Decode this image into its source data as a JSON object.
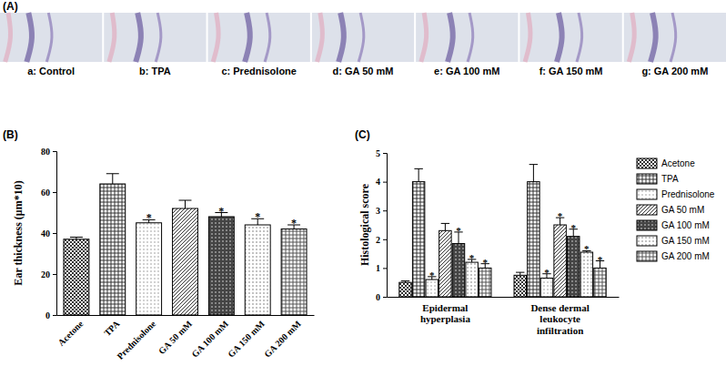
{
  "figure": {
    "panel_labels": [
      "(A)",
      "(B)",
      "(C)"
    ],
    "image_captions": [
      "a: Control",
      "b: TPA",
      "c: Prednisolone",
      "d: GA 50 mM",
      "e: GA 100 mM",
      "f: GA 150 mM",
      "g: GA 200 mM"
    ]
  },
  "chart_data": [
    {
      "type": "bar",
      "y_label": "Ear thickness (μm*10)",
      "categories": [
        "Acetone",
        "TPA",
        "Prednisolone",
        "GA 50 mM",
        "GA 100 mM",
        "GA 150 mM",
        "GA 200 mM"
      ],
      "values": [
        37,
        64,
        45,
        52,
        48,
        44,
        42
      ],
      "errors": [
        1,
        5,
        1.5,
        4,
        2,
        3,
        2
      ],
      "significance": [
        null,
        null,
        "*",
        null,
        "*",
        "*",
        "*"
      ],
      "colors": [
        "#333333",
        "#333333",
        "#999999",
        "#333333",
        "#444444",
        "#777777",
        "#555555"
      ],
      "ylim": [
        0,
        80
      ],
      "yticks": [
        0,
        20,
        40,
        60,
        80
      ]
    },
    {
      "type": "bar",
      "y_label": "Histological score",
      "categories": [
        "Epidermal hyperplasia",
        "Dense dermal leukocyte infiltration"
      ],
      "series": [
        {
          "name": "Acetone",
          "color": "#333333",
          "values": [
            0.5,
            0.75
          ],
          "errors": [
            0.05,
            0.1
          ],
          "significance": [
            null,
            null
          ]
        },
        {
          "name": "TPA",
          "color": "#333333",
          "values": [
            4.0,
            4.0
          ],
          "errors": [
            0.45,
            0.6
          ],
          "significance": [
            null,
            null
          ]
        },
        {
          "name": "Prednisolone",
          "color": "#999999",
          "values": [
            0.6,
            0.65
          ],
          "errors": [
            0.1,
            0.15
          ],
          "significance": [
            "*",
            "*"
          ]
        },
        {
          "name": "GA 50 mM",
          "color": "#333333",
          "values": [
            2.3,
            2.5
          ],
          "errors": [
            0.25,
            0.25
          ],
          "significance": [
            null,
            "*"
          ]
        },
        {
          "name": "GA 100 mM",
          "color": "#444444",
          "values": [
            1.85,
            2.1
          ],
          "errors": [
            0.4,
            0.25
          ],
          "significance": [
            "*",
            "*"
          ]
        },
        {
          "name": "GA 150 mM",
          "color": "#777777",
          "values": [
            1.2,
            1.55
          ],
          "errors": [
            0.1,
            0.05
          ],
          "significance": [
            "*",
            "*"
          ]
        },
        {
          "name": "GA 200 mM",
          "color": "#555555",
          "values": [
            1.0,
            1.0
          ],
          "errors": [
            0.15,
            0.25
          ],
          "significance": [
            "*",
            "*"
          ]
        }
      ],
      "ylim": [
        0,
        5
      ],
      "yticks": [
        0,
        1,
        2,
        3,
        4,
        5
      ],
      "legend": "right"
    }
  ]
}
